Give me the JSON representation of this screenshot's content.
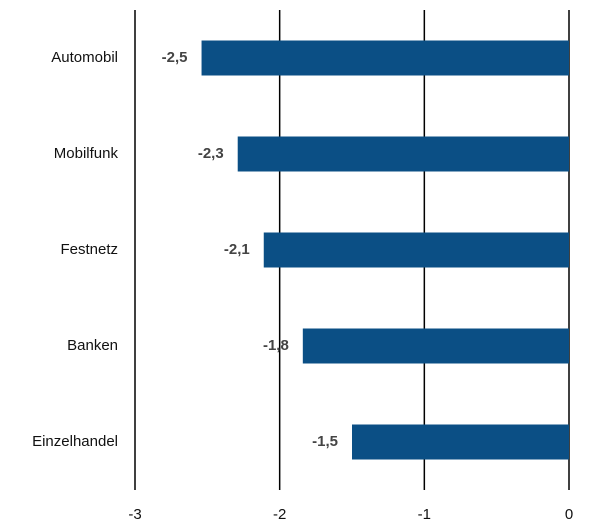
{
  "chart_data": {
    "type": "hbar",
    "categories": [
      "Automobil",
      "Mobilfunk",
      "Festnetz",
      "Banken",
      "Einzelhandel"
    ],
    "values": [
      -2.54,
      -2.29,
      -2.11,
      -1.84,
      -1.5
    ],
    "value_labels": [
      "-2,5",
      "-2,3",
      "-2,1",
      "-1,8",
      "-1,5"
    ],
    "color": "#0b4f85",
    "xlim": [
      -3,
      0
    ],
    "xticks": [
      -3,
      -2,
      -1,
      0
    ],
    "grid": true
  }
}
